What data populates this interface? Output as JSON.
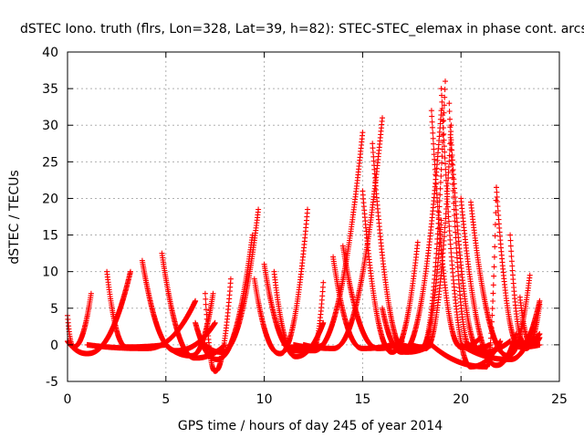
{
  "chart_data": {
    "type": "scatter",
    "title": "dSTEC Iono. truth (flrs, Lon=328, Lat=39, h=82): STEC-STEC_elemax in phase cont. arcs",
    "xlabel": "GPS time / hours of day 245 of year 2014",
    "ylabel": "dSTEC  / TECUs",
    "xlim": [
      0,
      25
    ],
    "ylim": [
      -5,
      40
    ],
    "xticks": [
      0,
      5,
      10,
      15,
      20,
      25
    ],
    "yticks": [
      -5,
      0,
      5,
      10,
      15,
      20,
      25,
      30,
      35,
      40
    ],
    "grid": true,
    "marker": "+",
    "color": "#ff0000",
    "series_description": "satellite pass arcs (U-shaped curves, minimum at elevation max)",
    "arcs": [
      {
        "x0": 0.0,
        "x1": 1.2,
        "xm": 0.3,
        "ym": -0.3,
        "yl": 4.0,
        "yr": 7.0
      },
      {
        "x0": 0.0,
        "x1": 3.2,
        "xm": 1.0,
        "ym": -1.2,
        "yl": 0.5,
        "yr": 10.0
      },
      {
        "x0": 2.0,
        "x1": 5.0,
        "xm": 3.0,
        "ym": -0.3,
        "yl": 10.0,
        "yr": 0.0
      },
      {
        "x0": 1.0,
        "x1": 6.5,
        "xm": 4.0,
        "ym": -0.5,
        "yl": 0.0,
        "yr": 6.0
      },
      {
        "x0": 3.8,
        "x1": 7.5,
        "xm": 5.5,
        "ym": -0.8,
        "yl": 11.5,
        "yr": 3.0
      },
      {
        "x0": 4.8,
        "x1": 8.0,
        "xm": 6.5,
        "ym": -1.8,
        "yl": 12.5,
        "yr": 0.0
      },
      {
        "x0": 5.0,
        "x1": 7.4,
        "xm": 6.3,
        "ym": -1.5,
        "yl": 0.0,
        "yr": 7.0
      },
      {
        "x0": 7.0,
        "x1": 8.3,
        "xm": 7.5,
        "ym": -3.6,
        "yl": 7.0,
        "yr": 9.0
      },
      {
        "x0": 7.0,
        "x1": 9.7,
        "xm": 7.8,
        "ym": -1.0,
        "yl": 0.0,
        "yr": 18.5
      },
      {
        "x0": 6.5,
        "x1": 9.4,
        "xm": 7.6,
        "ym": -2.0,
        "yl": 3.0,
        "yr": 15.0
      },
      {
        "x0": 9.5,
        "x1": 12.2,
        "xm": 10.8,
        "ym": -1.2,
        "yl": 9.0,
        "yr": 18.5
      },
      {
        "x0": 10.0,
        "x1": 13.0,
        "xm": 11.5,
        "ym": -0.8,
        "yl": 11.0,
        "yr": 0.0
      },
      {
        "x0": 10.5,
        "x1": 13.0,
        "xm": 11.6,
        "ym": -1.6,
        "yl": 10.0,
        "yr": 3.0
      },
      {
        "x0": 11.0,
        "x1": 15.0,
        "xm": 12.5,
        "ym": -0.8,
        "yl": 0.0,
        "yr": 29.0
      },
      {
        "x0": 12.0,
        "x1": 16.0,
        "xm": 13.5,
        "ym": -0.5,
        "yl": 0.0,
        "yr": 31.0
      },
      {
        "x0": 11.5,
        "x1": 13.0,
        "xm": 12.5,
        "ym": -0.3,
        "yl": 0.0,
        "yr": 8.5
      },
      {
        "x0": 13.5,
        "x1": 16.5,
        "xm": 15.0,
        "ym": -0.5,
        "yl": 12.0,
        "yr": 0.0
      },
      {
        "x0": 14.0,
        "x1": 17.0,
        "xm": 15.8,
        "ym": -0.5,
        "yl": 13.5,
        "yr": 0.5
      },
      {
        "x0": 15.0,
        "x1": 17.8,
        "xm": 16.5,
        "ym": -1.0,
        "yl": 21.0,
        "yr": 14.0
      },
      {
        "x0": 15.5,
        "x1": 18.5,
        "xm": 17.2,
        "ym": -1.0,
        "yl": 27.5,
        "yr": 0.0
      },
      {
        "x0": 16.0,
        "x1": 19.0,
        "xm": 17.0,
        "ym": -1.0,
        "yl": 5.0,
        "yr": 32.0
      },
      {
        "x0": 16.5,
        "x1": 19.2,
        "xm": 18.0,
        "ym": -0.5,
        "yl": 0.0,
        "yr": 36.0
      },
      {
        "x0": 17.0,
        "x1": 19.5,
        "xm": 18.2,
        "ym": -0.5,
        "yl": 0.0,
        "yr": 30.0
      },
      {
        "x0": 17.5,
        "x1": 19.0,
        "xm": 18.0,
        "ym": -0.3,
        "yl": 0.0,
        "yr": 17.0
      },
      {
        "x0": 18.5,
        "x1": 21.0,
        "xm": 20.0,
        "ym": -0.3,
        "yl": 32.0,
        "yr": 1.0
      },
      {
        "x0": 19.0,
        "x1": 22.0,
        "xm": 20.5,
        "ym": -3.0,
        "yl": 35.0,
        "yr": 0.5
      },
      {
        "x0": 19.4,
        "x1": 21.5,
        "xm": 20.5,
        "ym": -0.5,
        "yl": 33.0,
        "yr": 0.0
      },
      {
        "x0": 19.5,
        "x1": 22.5,
        "xm": 21.0,
        "ym": -1.0,
        "yl": 28.0,
        "yr": 0.5
      },
      {
        "x0": 18.5,
        "x1": 21.8,
        "xm": 21.3,
        "ym": -3.0,
        "yl": 0.0,
        "yr": 21.5
      },
      {
        "x0": 20.0,
        "x1": 22.8,
        "xm": 21.8,
        "ym": -2.8,
        "yl": 20.0,
        "yr": 1.5
      },
      {
        "x0": 20.5,
        "x1": 23.5,
        "xm": 22.4,
        "ym": -1.5,
        "yl": 19.5,
        "yr": 9.5
      },
      {
        "x0": 21.8,
        "x1": 24.0,
        "xm": 23.0,
        "ym": -0.3,
        "yl": 21.5,
        "yr": 0.0
      },
      {
        "x0": 20.0,
        "x1": 24.0,
        "xm": 22.5,
        "ym": -2.0,
        "yl": 0.0,
        "yr": 6.0
      },
      {
        "x0": 22.5,
        "x1": 24.0,
        "xm": 23.2,
        "ym": 0.3,
        "yl": 15.0,
        "yr": 1.5
      },
      {
        "x0": 23.0,
        "x1": 24.0,
        "xm": 23.6,
        "ym": 0.0,
        "yl": 6.5,
        "yr": 1.0
      },
      {
        "x0": 23.0,
        "x1": 24.0,
        "xm": 23.3,
        "ym": -0.5,
        "yl": 0.5,
        "yr": 5.5
      }
    ]
  }
}
